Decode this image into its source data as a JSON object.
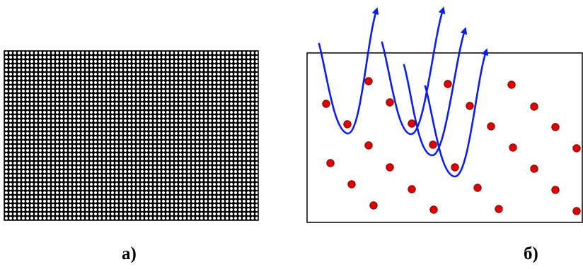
{
  "panel_a": {
    "label": "а)",
    "pattern": "dense-lattice-of-white-dots-on-black",
    "fill_color": "#000000",
    "dot_color": "#ffffff"
  },
  "panel_b": {
    "label": "б)",
    "box_color": "#000000",
    "particle_color": "#dd0000",
    "particle_outline": "#7a0000",
    "trajectory_color": "#0a1ee6",
    "particle_icon": "red-dot-icon",
    "trajectory_icon": "blue-arrow-icon"
  }
}
